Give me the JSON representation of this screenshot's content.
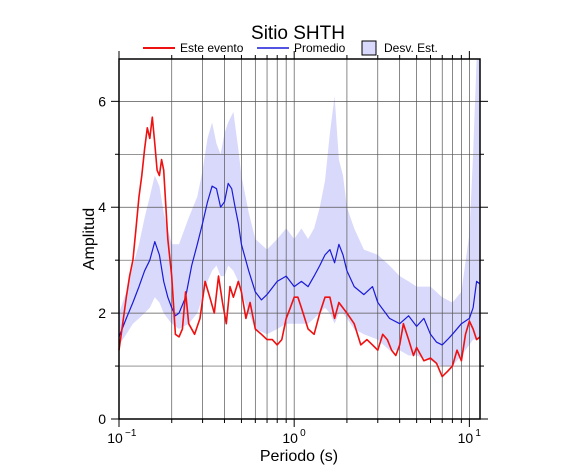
{
  "chart_data": {
    "type": "line",
    "title": "Sitio SHTH",
    "xlabel": "Periodo (s)",
    "ylabel": "Amplitud",
    "xscale": "log",
    "xlim": [
      0.1,
      11.5
    ],
    "ylim": [
      0,
      6.8
    ],
    "grid": true,
    "legend_placement": "top",
    "x_ticks": [
      {
        "base": "10",
        "exp": "−1"
      },
      {
        "base": "10",
        "exp": "0"
      },
      {
        "base": "10",
        "exp": "1"
      }
    ],
    "y_ticks": [
      "0",
      "2",
      "4",
      "6"
    ],
    "colors": {
      "este": "#ee1111",
      "promedio": "#1a1ad8",
      "band": "#d9d9fb"
    },
    "legend": {
      "este": "Este evento",
      "promedio": "Promedio",
      "band": "Desv. Est."
    },
    "series": [
      {
        "name": "Este evento",
        "x": [
          0.1,
          0.105,
          0.11,
          0.115,
          0.12,
          0.125,
          0.13,
          0.135,
          0.14,
          0.145,
          0.15,
          0.155,
          0.16,
          0.165,
          0.17,
          0.175,
          0.18,
          0.19,
          0.2,
          0.21,
          0.22,
          0.23,
          0.24,
          0.25,
          0.27,
          0.29,
          0.31,
          0.33,
          0.35,
          0.37,
          0.39,
          0.41,
          0.43,
          0.45,
          0.48,
          0.5,
          0.53,
          0.56,
          0.6,
          0.65,
          0.7,
          0.75,
          0.8,
          0.85,
          0.9,
          0.95,
          1.0,
          1.05,
          1.1,
          1.2,
          1.3,
          1.4,
          1.5,
          1.6,
          1.7,
          1.8,
          2.0,
          2.2,
          2.4,
          2.6,
          2.8,
          3.0,
          3.2,
          3.4,
          3.6,
          3.8,
          4.0,
          4.2,
          4.5,
          4.8,
          5.0,
          5.5,
          6.0,
          6.5,
          7.0,
          7.5,
          8.0,
          8.5,
          9.0,
          9.5,
          10.0,
          10.5,
          11.0,
          11.5
        ],
        "values": [
          1.3,
          1.8,
          2.3,
          2.7,
          3.0,
          3.6,
          4.2,
          4.6,
          5.1,
          5.5,
          5.3,
          5.7,
          5.2,
          4.7,
          4.6,
          4.9,
          4.7,
          3.4,
          2.7,
          1.6,
          1.55,
          1.7,
          2.4,
          1.8,
          1.6,
          1.9,
          2.6,
          2.3,
          2.0,
          2.7,
          2.2,
          1.8,
          2.5,
          2.3,
          2.6,
          2.4,
          1.9,
          2.2,
          1.7,
          1.6,
          1.5,
          1.5,
          1.4,
          1.5,
          1.9,
          2.1,
          2.3,
          2.3,
          2.1,
          1.7,
          1.6,
          2.0,
          2.3,
          2.3,
          1.9,
          2.2,
          2.0,
          1.8,
          1.4,
          1.5,
          1.4,
          1.3,
          1.6,
          1.5,
          1.3,
          1.2,
          1.4,
          1.8,
          1.5,
          1.2,
          1.35,
          1.1,
          1.15,
          1.05,
          0.8,
          0.9,
          1.0,
          1.3,
          1.1,
          1.6,
          1.85,
          1.7,
          1.5,
          1.55
        ]
      },
      {
        "name": "Promedio",
        "x": [
          0.1,
          0.11,
          0.12,
          0.13,
          0.14,
          0.15,
          0.16,
          0.17,
          0.18,
          0.19,
          0.2,
          0.21,
          0.22,
          0.24,
          0.26,
          0.28,
          0.3,
          0.32,
          0.34,
          0.36,
          0.38,
          0.4,
          0.42,
          0.44,
          0.46,
          0.48,
          0.5,
          0.55,
          0.6,
          0.65,
          0.7,
          0.8,
          0.9,
          1.0,
          1.1,
          1.2,
          1.3,
          1.4,
          1.5,
          1.6,
          1.7,
          1.8,
          1.9,
          2.0,
          2.2,
          2.5,
          2.8,
          3.0,
          3.5,
          4.0,
          4.5,
          5.0,
          5.5,
          6.0,
          6.5,
          7.0,
          7.5,
          8.0,
          9.0,
          10.0,
          10.5,
          11.0,
          11.5
        ],
        "values": [
          1.55,
          1.9,
          2.2,
          2.5,
          2.8,
          3.0,
          3.35,
          3.1,
          2.6,
          2.3,
          2.1,
          1.95,
          2.0,
          2.3,
          2.9,
          3.3,
          3.7,
          4.1,
          4.4,
          4.35,
          4.0,
          4.1,
          4.45,
          4.35,
          4.0,
          3.7,
          3.3,
          2.8,
          2.4,
          2.25,
          2.35,
          2.6,
          2.7,
          2.5,
          2.6,
          2.5,
          2.7,
          2.9,
          3.1,
          3.2,
          2.95,
          3.3,
          3.1,
          2.8,
          2.5,
          2.35,
          2.5,
          2.2,
          1.9,
          1.8,
          1.95,
          1.75,
          1.9,
          1.6,
          1.45,
          1.4,
          1.5,
          1.6,
          1.8,
          1.9,
          2.1,
          2.6,
          2.55
        ]
      },
      {
        "name": "Desv. Est.",
        "x": [
          0.1,
          0.11,
          0.12,
          0.13,
          0.14,
          0.15,
          0.16,
          0.17,
          0.18,
          0.2,
          0.22,
          0.25,
          0.28,
          0.3,
          0.32,
          0.34,
          0.36,
          0.38,
          0.4,
          0.42,
          0.45,
          0.48,
          0.5,
          0.55,
          0.6,
          0.7,
          0.8,
          0.9,
          1.0,
          1.1,
          1.2,
          1.3,
          1.4,
          1.5,
          1.6,
          1.7,
          1.8,
          1.9,
          2.0,
          2.2,
          2.5,
          3.0,
          3.5,
          4.0,
          4.5,
          5.0,
          6.0,
          7.0,
          8.0,
          9.0,
          10.0,
          10.5,
          11.0,
          11.5
        ],
        "upper": [
          2.0,
          2.4,
          2.9,
          3.3,
          3.8,
          4.2,
          4.6,
          4.4,
          3.9,
          3.3,
          3.3,
          3.8,
          4.2,
          4.7,
          5.3,
          5.6,
          5.2,
          5.0,
          5.4,
          5.6,
          5.8,
          5.1,
          4.6,
          3.9,
          3.4,
          3.2,
          3.4,
          3.6,
          3.4,
          3.6,
          3.4,
          3.6,
          4.0,
          4.5,
          5.4,
          6.1,
          4.9,
          4.6,
          4.0,
          3.6,
          3.2,
          3.1,
          2.9,
          2.7,
          2.6,
          2.5,
          2.5,
          2.3,
          2.2,
          2.4,
          3.5,
          5.0,
          6.8,
          6.8
        ],
        "lower": [
          1.4,
          1.6,
          1.8,
          1.9,
          2.0,
          2.1,
          2.3,
          2.2,
          2.0,
          1.8,
          1.7,
          1.8,
          2.0,
          2.3,
          2.6,
          2.8,
          2.9,
          2.7,
          2.7,
          2.9,
          2.8,
          2.6,
          2.4,
          2.0,
          1.7,
          1.6,
          1.7,
          1.8,
          1.8,
          1.8,
          1.8,
          1.9,
          2.0,
          2.1,
          2.0,
          1.8,
          2.0,
          2.0,
          1.9,
          1.7,
          1.6,
          1.5,
          1.3,
          1.3,
          1.2,
          1.2,
          1.1,
          1.0,
          1.0,
          1.2,
          1.4,
          1.5,
          1.5,
          1.5
        ]
      }
    ]
  }
}
